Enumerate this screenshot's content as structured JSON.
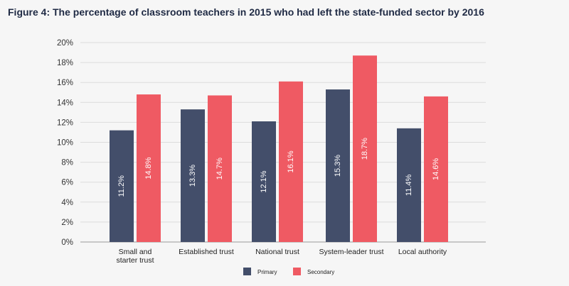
{
  "title": "Figure 4: The percentage of classroom teachers in 2015 who had left the state-funded sector by 2016",
  "chart_data": {
    "type": "bar",
    "title": "Figure 4: The percentage of classroom teachers in 2015 who had left the state-funded sector by 2016",
    "xlabel": "",
    "ylabel": "",
    "ylim": [
      0,
      20
    ],
    "yticks": [
      0,
      2,
      4,
      6,
      8,
      10,
      12,
      14,
      16,
      18,
      20
    ],
    "ytick_labels": [
      "0%",
      "2%",
      "4%",
      "6%",
      "8%",
      "10%",
      "12%",
      "14%",
      "16%",
      "18%",
      "20%"
    ],
    "categories": [
      [
        "Small and",
        "starter trust"
      ],
      [
        "Established trust"
      ],
      [
        "National trust"
      ],
      [
        "System-leader trust"
      ],
      [
        "Local authority"
      ]
    ],
    "series": [
      {
        "name": "Primary",
        "color": "#434e6a",
        "values": [
          11.2,
          13.3,
          12.1,
          15.3,
          11.4
        ],
        "labels": [
          "11.2%",
          "13.3%",
          "12.1%",
          "15.3%",
          "11.4%"
        ]
      },
      {
        "name": "Secondary",
        "color": "#ef5a63",
        "values": [
          14.8,
          14.7,
          16.1,
          18.7,
          14.6
        ],
        "labels": [
          "14.8%",
          "14.7%",
          "16.1%",
          "18.7%",
          "14.6%"
        ]
      }
    ],
    "grid": true,
    "legend_position": "bottom-center"
  }
}
